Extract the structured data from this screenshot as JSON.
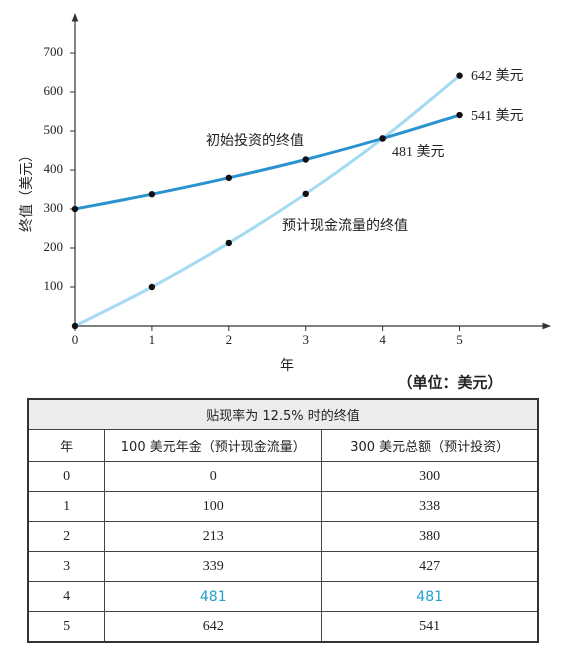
{
  "chart_data": {
    "type": "line",
    "x": [
      0,
      1,
      2,
      3,
      4,
      5
    ],
    "series": [
      {
        "name": "初始投资的终值",
        "color": "#2a93cf",
        "values": [
          300,
          338,
          380,
          427,
          481,
          541
        ]
      },
      {
        "name": "预计现金流量的终值",
        "color": "#a4daf2",
        "values": [
          0,
          100,
          213,
          339,
          481,
          642
        ]
      }
    ],
    "annotations": [
      "642 美元",
      "541 美元",
      "481 美元"
    ],
    "x_label": "年",
    "y_label": "终值（美元）",
    "unit_note": "（单位：美元）",
    "xlim": [
      0,
      6.15
    ],
    "ylim": [
      0,
      795
    ],
    "xticks": [
      0,
      1,
      2,
      3,
      4,
      5
    ],
    "yticks": [
      100,
      200,
      300,
      400,
      500,
      600,
      700
    ]
  },
  "table": {
    "title": "贴现率为 12.5% 时的终值",
    "header": [
      "年",
      "100 美元年金（预计现金流量）",
      "300 美元总额（预计投资）"
    ],
    "rows": [
      [
        0,
        0,
        300
      ],
      [
        1,
        100,
        338
      ],
      [
        2,
        213,
        380
      ],
      [
        3,
        339,
        427
      ],
      [
        4,
        481,
        481
      ],
      [
        5,
        642,
        541
      ]
    ]
  }
}
